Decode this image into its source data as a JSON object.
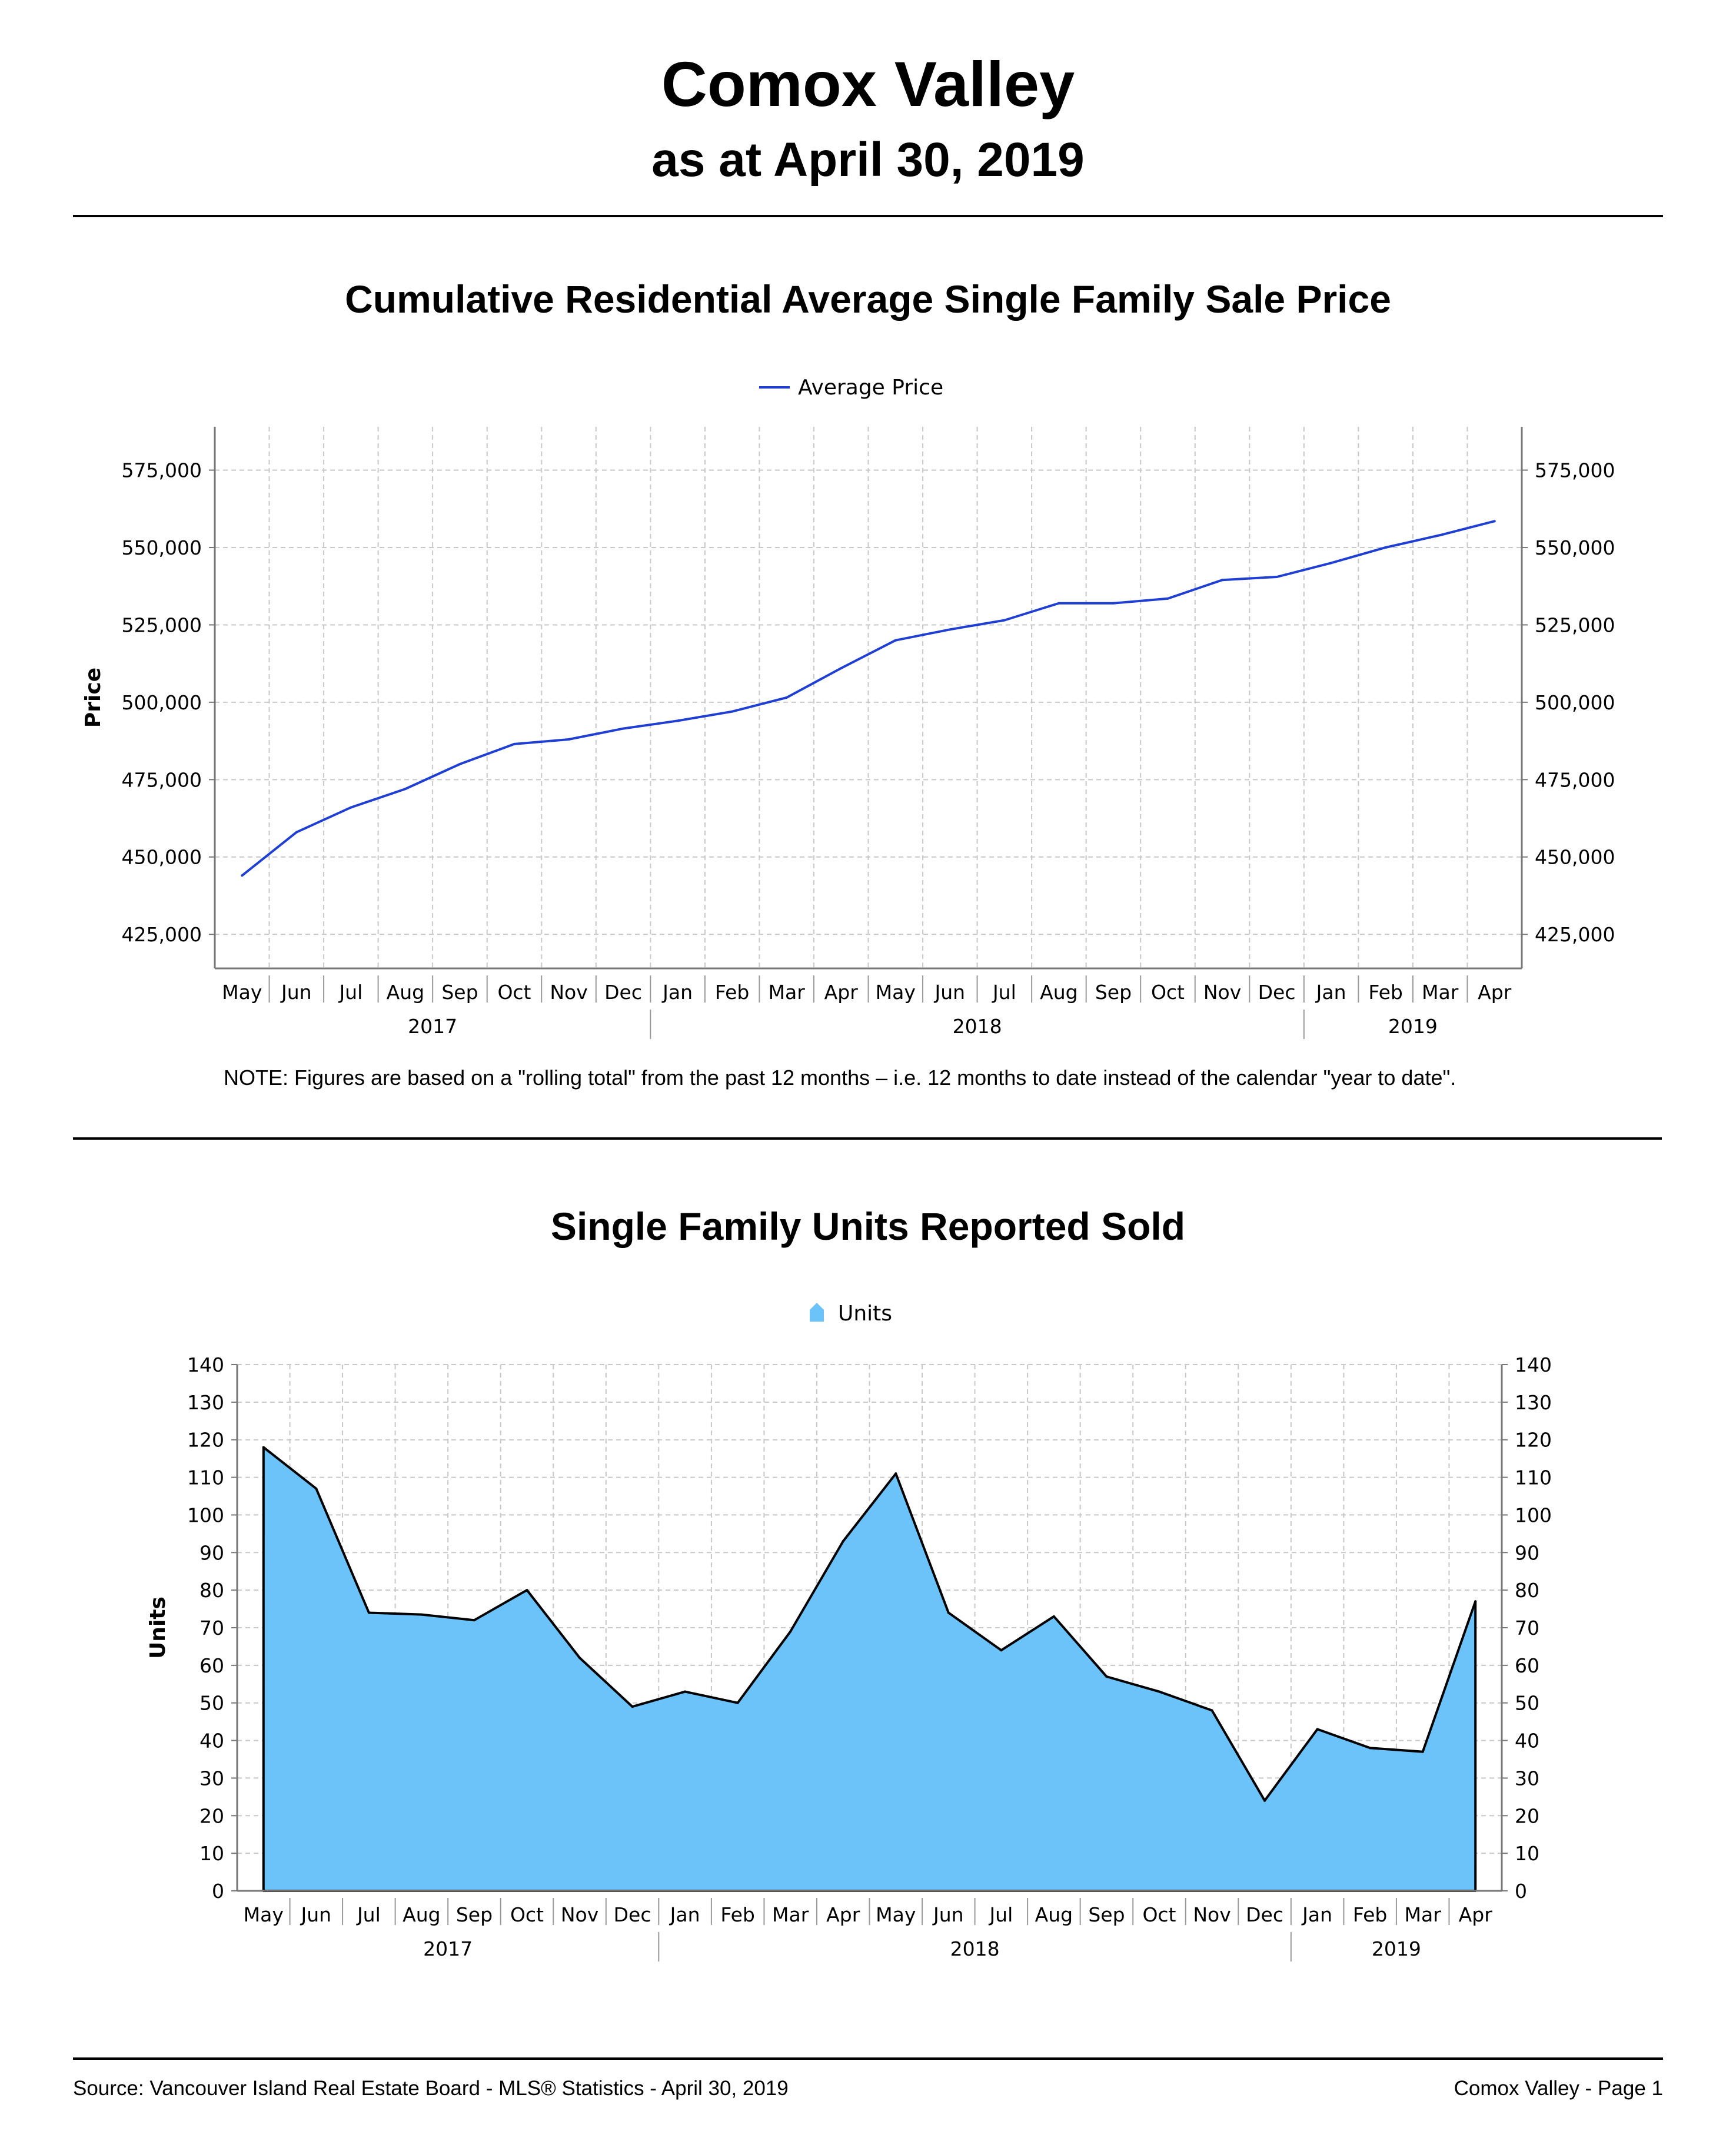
{
  "header": {
    "title": "Comox Valley",
    "subtitle": "as at April 30, 2019"
  },
  "price_chart": {
    "title": "Cumulative Residential Average Single Family Sale Price",
    "note": "NOTE:  Figures are based on a \"rolling total\" from the past 12 months – i.e. 12 months to date instead of the calendar \"year to date\"."
  },
  "units_chart": {
    "title": "Single Family Units Reported Sold"
  },
  "footer": {
    "source": "Source: Vancouver Island Real Estate Board - MLS® Statistics - April 30, 2019",
    "page": "Comox Valley - Page 1"
  },
  "colors": {
    "price_line": "#1f3fd4",
    "units_fill": "#6cc3f9",
    "units_stroke": "#000000",
    "grid": "#c8c8c8"
  },
  "chart_data": [
    {
      "type": "line",
      "title": "Cumulative Residential Average Single Family Sale Price",
      "ylabel": "Price",
      "legend": "Average Price",
      "legend_position": "top-center",
      "categories": [
        "May",
        "Jun",
        "Jul",
        "Aug",
        "Sep",
        "Oct",
        "Nov",
        "Dec",
        "Jan",
        "Feb",
        "Mar",
        "Apr",
        "May",
        "Jun",
        "Jul",
        "Aug",
        "Sep",
        "Oct",
        "Nov",
        "Dec",
        "Jan",
        "Feb",
        "Mar",
        "Apr"
      ],
      "year_groups": [
        {
          "label": "2017",
          "start": 0,
          "end": 7
        },
        {
          "label": "2018",
          "start": 8,
          "end": 19
        },
        {
          "label": "2019",
          "start": 20,
          "end": 23
        }
      ],
      "y_ticks": [
        "425,000",
        "450,000",
        "475,000",
        "500,000",
        "525,000",
        "550,000",
        "575,000"
      ],
      "y_tick_values": [
        425000,
        450000,
        475000,
        500000,
        525000,
        550000,
        575000
      ],
      "ylim": [
        414000,
        589000
      ],
      "grid": true,
      "series": [
        {
          "name": "Average Price",
          "values": [
            444000,
            458000,
            466000,
            472000,
            480000,
            486500,
            488000,
            491500,
            494000,
            497000,
            501500,
            511000,
            520000,
            523500,
            526500,
            532000,
            532000,
            533500,
            539500,
            540500,
            545000,
            550000,
            554000,
            558500
          ]
        }
      ]
    },
    {
      "type": "area",
      "title": "Single Family Units Reported Sold",
      "ylabel": "Units",
      "legend": "Units",
      "legend_position": "top-center",
      "categories": [
        "May",
        "Jun",
        "Jul",
        "Aug",
        "Sep",
        "Oct",
        "Nov",
        "Dec",
        "Jan",
        "Feb",
        "Mar",
        "Apr",
        "May",
        "Jun",
        "Jul",
        "Aug",
        "Sep",
        "Oct",
        "Nov",
        "Dec",
        "Jan",
        "Feb",
        "Mar",
        "Apr"
      ],
      "year_groups": [
        {
          "label": "2017",
          "start": 0,
          "end": 7
        },
        {
          "label": "2018",
          "start": 8,
          "end": 19
        },
        {
          "label": "2019",
          "start": 20,
          "end": 23
        }
      ],
      "y_ticks": [
        "0",
        "10",
        "20",
        "30",
        "40",
        "50",
        "60",
        "70",
        "80",
        "90",
        "100",
        "110",
        "120",
        "130",
        "140"
      ],
      "y_tick_values": [
        0,
        10,
        20,
        30,
        40,
        50,
        60,
        70,
        80,
        90,
        100,
        110,
        120,
        130,
        140
      ],
      "ylim": [
        0,
        140
      ],
      "grid": true,
      "series": [
        {
          "name": "Units",
          "values": [
            118,
            107,
            74,
            73.5,
            72,
            80,
            62,
            49,
            53,
            50,
            69,
            93,
            111,
            74,
            64,
            73,
            57,
            53,
            48,
            24,
            43,
            38,
            37,
            77
          ]
        }
      ]
    }
  ]
}
